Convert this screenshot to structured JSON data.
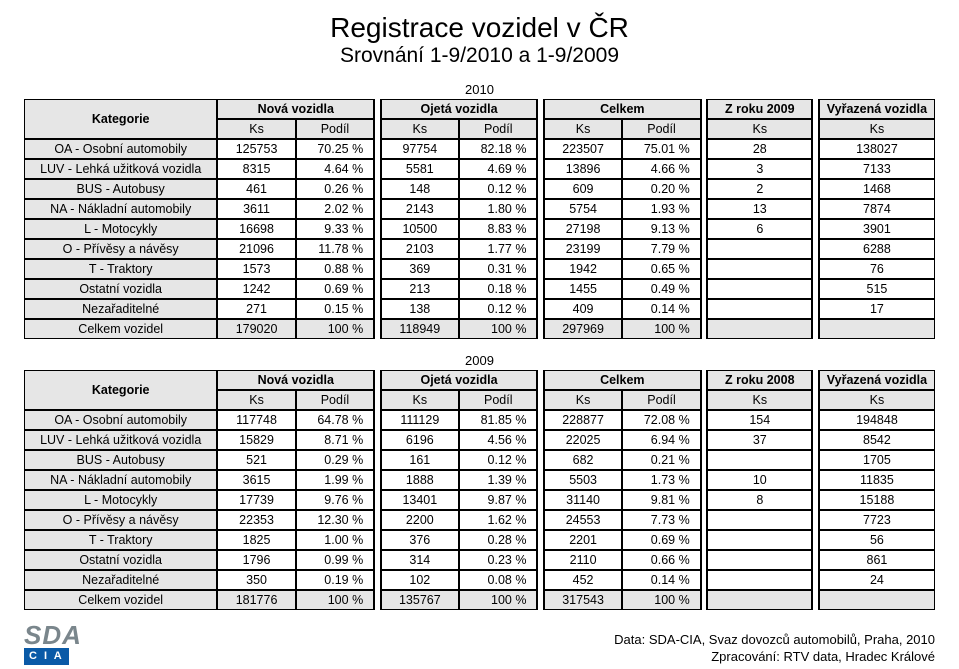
{
  "title": "Registrace vozidel v ČR",
  "subtitle": "Srovnání  1-9/2010 a 1-9/2009",
  "labels": {
    "kategorie": "Kategorie",
    "nova": "Nová vozidla",
    "ojeta": "Ojetá vozidla",
    "celkem": "Celkem",
    "vyrazena": "Vyřazená vozidla",
    "ks": "Ks",
    "podil": "Podíl"
  },
  "tableA": {
    "year": "2010",
    "zroku": "Z roku 2009",
    "rows": [
      {
        "cat": "OA - Osobní automobily",
        "nKs": "125753",
        "nP": "70.25 %",
        "oKs": "97754",
        "oP": "82.18 %",
        "cKs": "223507",
        "cP": "75.01 %",
        "zKs": "28",
        "vKs": "138027"
      },
      {
        "cat": "LUV - Lehká užitková vozidla",
        "nKs": "8315",
        "nP": "4.64 %",
        "oKs": "5581",
        "oP": "4.69 %",
        "cKs": "13896",
        "cP": "4.66 %",
        "zKs": "3",
        "vKs": "7133"
      },
      {
        "cat": "BUS - Autobusy",
        "nKs": "461",
        "nP": "0.26 %",
        "oKs": "148",
        "oP": "0.12 %",
        "cKs": "609",
        "cP": "0.20 %",
        "zKs": "2",
        "vKs": "1468"
      },
      {
        "cat": "NA - Nákladní automobily",
        "nKs": "3611",
        "nP": "2.02 %",
        "oKs": "2143",
        "oP": "1.80 %",
        "cKs": "5754",
        "cP": "1.93 %",
        "zKs": "13",
        "vKs": "7874"
      },
      {
        "cat": "L - Motocykly",
        "nKs": "16698",
        "nP": "9.33 %",
        "oKs": "10500",
        "oP": "8.83 %",
        "cKs": "27198",
        "cP": "9.13 %",
        "zKs": "6",
        "vKs": "3901"
      },
      {
        "cat": "O - Přívěsy a návěsy",
        "nKs": "21096",
        "nP": "11.78 %",
        "oKs": "2103",
        "oP": "1.77 %",
        "cKs": "23199",
        "cP": "7.79 %",
        "zKs": "",
        "vKs": "6288"
      },
      {
        "cat": "T - Traktory",
        "nKs": "1573",
        "nP": "0.88 %",
        "oKs": "369",
        "oP": "0.31 %",
        "cKs": "1942",
        "cP": "0.65 %",
        "zKs": "",
        "vKs": "76"
      },
      {
        "cat": "Ostatní vozidla",
        "nKs": "1242",
        "nP": "0.69 %",
        "oKs": "213",
        "oP": "0.18 %",
        "cKs": "1455",
        "cP": "0.49 %",
        "zKs": "",
        "vKs": "515"
      },
      {
        "cat": "Nezařaditelné",
        "nKs": "271",
        "nP": "0.15 %",
        "oKs": "138",
        "oP": "0.12 %",
        "cKs": "409",
        "cP": "0.14 %",
        "zKs": "",
        "vKs": "17"
      },
      {
        "cat": "Celkem vozidel",
        "nKs": "179020",
        "nP": "100 %",
        "oKs": "118949",
        "oP": "100 %",
        "cKs": "297969",
        "cP": "100 %",
        "zKs": "",
        "vKs": ""
      }
    ]
  },
  "tableB": {
    "year": "2009",
    "zroku": "Z roku 2008",
    "rows": [
      {
        "cat": "OA - Osobní automobily",
        "nKs": "117748",
        "nP": "64.78 %",
        "oKs": "111129",
        "oP": "81.85 %",
        "cKs": "228877",
        "cP": "72.08 %",
        "zKs": "154",
        "vKs": "194848"
      },
      {
        "cat": "LUV - Lehká užitková vozidla",
        "nKs": "15829",
        "nP": "8.71 %",
        "oKs": "6196",
        "oP": "4.56 %",
        "cKs": "22025",
        "cP": "6.94 %",
        "zKs": "37",
        "vKs": "8542"
      },
      {
        "cat": "BUS - Autobusy",
        "nKs": "521",
        "nP": "0.29 %",
        "oKs": "161",
        "oP": "0.12 %",
        "cKs": "682",
        "cP": "0.21 %",
        "zKs": "",
        "vKs": "1705"
      },
      {
        "cat": "NA - Nákladní automobily",
        "nKs": "3615",
        "nP": "1.99 %",
        "oKs": "1888",
        "oP": "1.39 %",
        "cKs": "5503",
        "cP": "1.73 %",
        "zKs": "10",
        "vKs": "11835"
      },
      {
        "cat": "L - Motocykly",
        "nKs": "17739",
        "nP": "9.76 %",
        "oKs": "13401",
        "oP": "9.87 %",
        "cKs": "31140",
        "cP": "9.81 %",
        "zKs": "8",
        "vKs": "15188"
      },
      {
        "cat": "O - Přívěsy a návěsy",
        "nKs": "22353",
        "nP": "12.30 %",
        "oKs": "2200",
        "oP": "1.62 %",
        "cKs": "24553",
        "cP": "7.73 %",
        "zKs": "",
        "vKs": "7723"
      },
      {
        "cat": "T - Traktory",
        "nKs": "1825",
        "nP": "1.00 %",
        "oKs": "376",
        "oP": "0.28 %",
        "cKs": "2201",
        "cP": "0.69 %",
        "zKs": "",
        "vKs": "56"
      },
      {
        "cat": "Ostatní vozidla",
        "nKs": "1796",
        "nP": "0.99 %",
        "oKs": "314",
        "oP": "0.23 %",
        "cKs": "2110",
        "cP": "0.66 %",
        "zKs": "",
        "vKs": "861"
      },
      {
        "cat": "Nezařaditelné",
        "nKs": "350",
        "nP": "0.19 %",
        "oKs": "102",
        "oP": "0.08 %",
        "cKs": "452",
        "cP": "0.14 %",
        "zKs": "",
        "vKs": "24"
      },
      {
        "cat": "Celkem vozidel",
        "nKs": "181776",
        "nP": "100 %",
        "oKs": "135767",
        "oP": "100 %",
        "cKs": "317543",
        "cP": "100 %",
        "zKs": "",
        "vKs": ""
      }
    ]
  },
  "footer": {
    "line1": "Data: SDA-CIA, Svaz dovozců automobilů, Praha, 2010",
    "line2": "Zpracování: RTV data, Hradec Králové"
  },
  "logo": {
    "top": "SDA",
    "bottom": "C I A"
  },
  "colors": {
    "shade": "#e6e6e6",
    "border": "#000000",
    "bg": "#ffffff",
    "logoGray": "#7a868c",
    "logoBlue": "#0a5aa7"
  }
}
